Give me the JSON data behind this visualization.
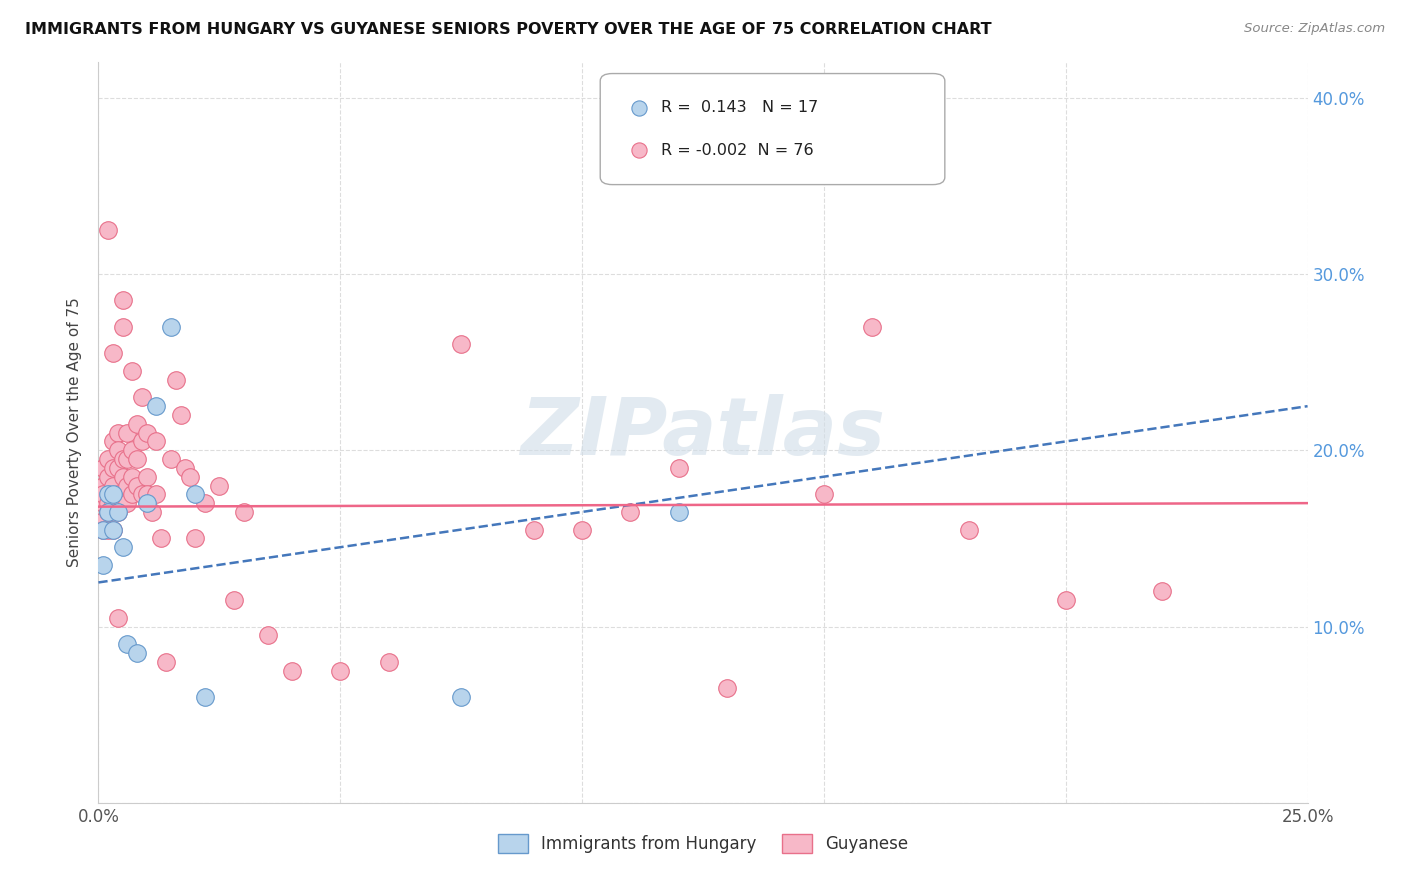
{
  "title": "IMMIGRANTS FROM HUNGARY VS GUYANESE SENIORS POVERTY OVER THE AGE OF 75 CORRELATION CHART",
  "source": "Source: ZipAtlas.com",
  "ylabel": "Seniors Poverty Over the Age of 75",
  "xlabel": "",
  "xlim": [
    0.0,
    0.25
  ],
  "ylim": [
    0.0,
    0.42
  ],
  "xticks": [
    0.0,
    0.05,
    0.1,
    0.15,
    0.2,
    0.25
  ],
  "xticklabels_show": [
    "0.0%",
    "25.0%"
  ],
  "yticks": [
    0.0,
    0.1,
    0.2,
    0.3,
    0.4
  ],
  "yticklabels": [
    "",
    "10.0%",
    "20.0%",
    "30.0%",
    "40.0%"
  ],
  "hungary_color": "#b8d4ec",
  "guyanese_color": "#f7b8c8",
  "hungary_edge_color": "#6699cc",
  "guyanese_edge_color": "#e8708a",
  "hungary_line_color": "#4477bb",
  "guyanese_line_color": "#ee6688",
  "R_hungary": 0.143,
  "N_hungary": 17,
  "R_guyanese": -0.002,
  "N_guyanese": 76,
  "watermark": "ZIPatlas",
  "legend_label_hungary": "Immigrants from Hungary",
  "legend_label_guyanese": "Guyanese",
  "hungary_x": [
    0.001,
    0.001,
    0.002,
    0.002,
    0.003,
    0.003,
    0.004,
    0.005,
    0.006,
    0.008,
    0.01,
    0.012,
    0.015,
    0.02,
    0.022,
    0.075,
    0.12
  ],
  "hungary_y": [
    0.155,
    0.135,
    0.165,
    0.175,
    0.155,
    0.175,
    0.165,
    0.145,
    0.09,
    0.085,
    0.17,
    0.225,
    0.27,
    0.175,
    0.06,
    0.06,
    0.165
  ],
  "guyanese_x": [
    0.001,
    0.001,
    0.001,
    0.001,
    0.001,
    0.001,
    0.002,
    0.002,
    0.002,
    0.002,
    0.002,
    0.002,
    0.003,
    0.003,
    0.003,
    0.003,
    0.003,
    0.003,
    0.004,
    0.004,
    0.004,
    0.004,
    0.004,
    0.004,
    0.005,
    0.005,
    0.005,
    0.005,
    0.005,
    0.006,
    0.006,
    0.006,
    0.006,
    0.007,
    0.007,
    0.007,
    0.007,
    0.008,
    0.008,
    0.008,
    0.009,
    0.009,
    0.009,
    0.01,
    0.01,
    0.01,
    0.011,
    0.012,
    0.012,
    0.013,
    0.014,
    0.015,
    0.016,
    0.017,
    0.018,
    0.019,
    0.02,
    0.022,
    0.025,
    0.028,
    0.03,
    0.035,
    0.04,
    0.05,
    0.06,
    0.075,
    0.09,
    0.1,
    0.11,
    0.12,
    0.13,
    0.15,
    0.16,
    0.18,
    0.2,
    0.22
  ],
  "guyanese_y": [
    0.19,
    0.18,
    0.17,
    0.16,
    0.155,
    0.175,
    0.325,
    0.195,
    0.185,
    0.17,
    0.165,
    0.155,
    0.255,
    0.205,
    0.19,
    0.18,
    0.17,
    0.155,
    0.21,
    0.2,
    0.19,
    0.175,
    0.165,
    0.105,
    0.285,
    0.27,
    0.195,
    0.185,
    0.17,
    0.21,
    0.195,
    0.18,
    0.17,
    0.245,
    0.2,
    0.185,
    0.175,
    0.215,
    0.195,
    0.18,
    0.23,
    0.205,
    0.175,
    0.21,
    0.185,
    0.175,
    0.165,
    0.205,
    0.175,
    0.15,
    0.08,
    0.195,
    0.24,
    0.22,
    0.19,
    0.185,
    0.15,
    0.17,
    0.18,
    0.115,
    0.165,
    0.095,
    0.075,
    0.075,
    0.08,
    0.26,
    0.155,
    0.155,
    0.165,
    0.19,
    0.065,
    0.175,
    0.27,
    0.155,
    0.115,
    0.12
  ],
  "hungary_trend_x0": 0.0,
  "hungary_trend_y0": 0.125,
  "hungary_trend_x1": 0.25,
  "hungary_trend_y1": 0.225,
  "guyanese_trend_x0": 0.0,
  "guyanese_trend_y0": 0.168,
  "guyanese_trend_x1": 0.25,
  "guyanese_trend_y1": 0.17
}
